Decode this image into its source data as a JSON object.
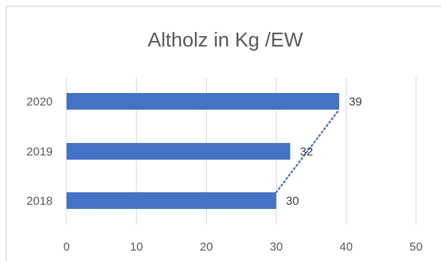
{
  "chart_data": {
    "type": "bar",
    "orientation": "horizontal",
    "title": "Altholz in Kg /EW",
    "categories": [
      "2020",
      "2019",
      "2018"
    ],
    "values": [
      39,
      32,
      30
    ],
    "data_labels": [
      "39",
      "32",
      "30"
    ],
    "xlim": [
      0,
      50
    ],
    "x_ticks": [
      "0",
      "10",
      "20",
      "30",
      "40",
      "50"
    ],
    "xlabel": "",
    "ylabel": "",
    "grid": true,
    "legend": "none",
    "trendline": {
      "style": "dotted",
      "connects": "bar-ends"
    },
    "colors": {
      "bar": "#4472C4",
      "trendline": "#4472C4",
      "grid": "#D9D9D9",
      "border": "#D9D9D9"
    }
  }
}
